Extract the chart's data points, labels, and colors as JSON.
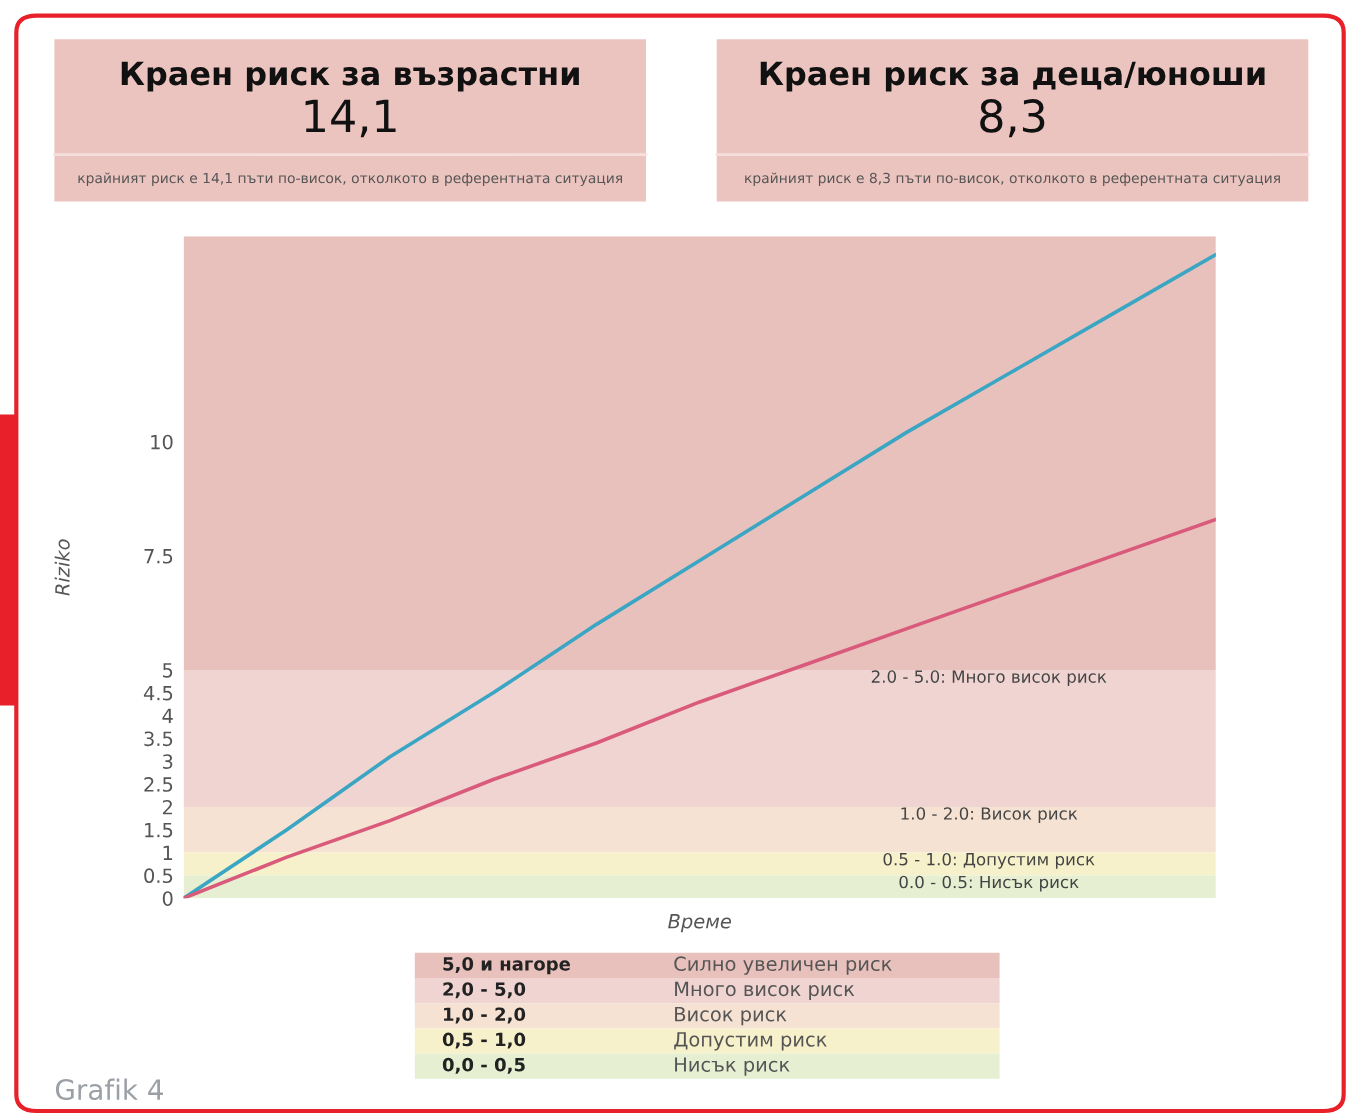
{
  "chart_data": {
    "type": "line",
    "xlabel": "Време",
    "ylabel": "Riziko",
    "categories": [
      null,
      null,
      null,
      null,
      null,
      null,
      null,
      null,
      null,
      null,
      null
    ],
    "series": [
      {
        "color": "#3aa6c4",
        "values": [
          0,
          1.5,
          3.1,
          4.5,
          6.0,
          7.4,
          8.8,
          10.2,
          11.5,
          12.8,
          14.1
        ]
      },
      {
        "color": "#d95a7a",
        "values": [
          0,
          0.9,
          1.7,
          2.6,
          3.4,
          4.3,
          5.1,
          5.9,
          6.7,
          7.5,
          8.3
        ]
      }
    ],
    "ylim": [
      0,
      14.5
    ],
    "yticks": [
      0,
      0.5,
      1,
      1.5,
      2,
      2.5,
      3,
      3.5,
      4,
      4.5,
      5,
      7.5,
      10
    ],
    "bands": [
      {
        "axis": "y",
        "from": 5,
        "to": 14.5,
        "color": "#e8c1bc"
      },
      {
        "axis": "y",
        "from": 2,
        "to": 5,
        "label": "2.0 - 5.0: Много висок риск",
        "color": "#f0d4d1"
      },
      {
        "axis": "y",
        "from": 1,
        "to": 2,
        "label": "1.0 - 2.0: Висок риск",
        "color": "#f6e2d2"
      },
      {
        "axis": "y",
        "from": 0.5,
        "to": 1,
        "label": "0.5 - 1.0: Допустим риск",
        "color": "#f7f1cb"
      },
      {
        "axis": "y",
        "from": 0,
        "to": 0.5,
        "label": "0.0 - 0.5: Нисък риск",
        "color": "#e6efd2"
      }
    ],
    "annotations": [
      "Краен риск за възрастни",
      "14,1",
      "крайният риск е 14,1 пъти по-висок, отколкото в референтната ситуация",
      "Краен риск за деца/юноши",
      "8,3",
      "крайният риск е 8,3 пъти по-висок, отколкото в референтната ситуация",
      "5,0 и нагоре",
      "Силно увеличен риск",
      "2,0 - 5,0",
      "Много висок риск",
      "1,0 - 2,0",
      "Висок риск",
      "0,5 - 1,0",
      "Допустим риск",
      "0,0 - 0,5",
      "Нисък риск",
      "Grafik 4"
    ],
    "legend": false,
    "grid": false,
    "marker": "none",
    "line_style": "solid"
  }
}
